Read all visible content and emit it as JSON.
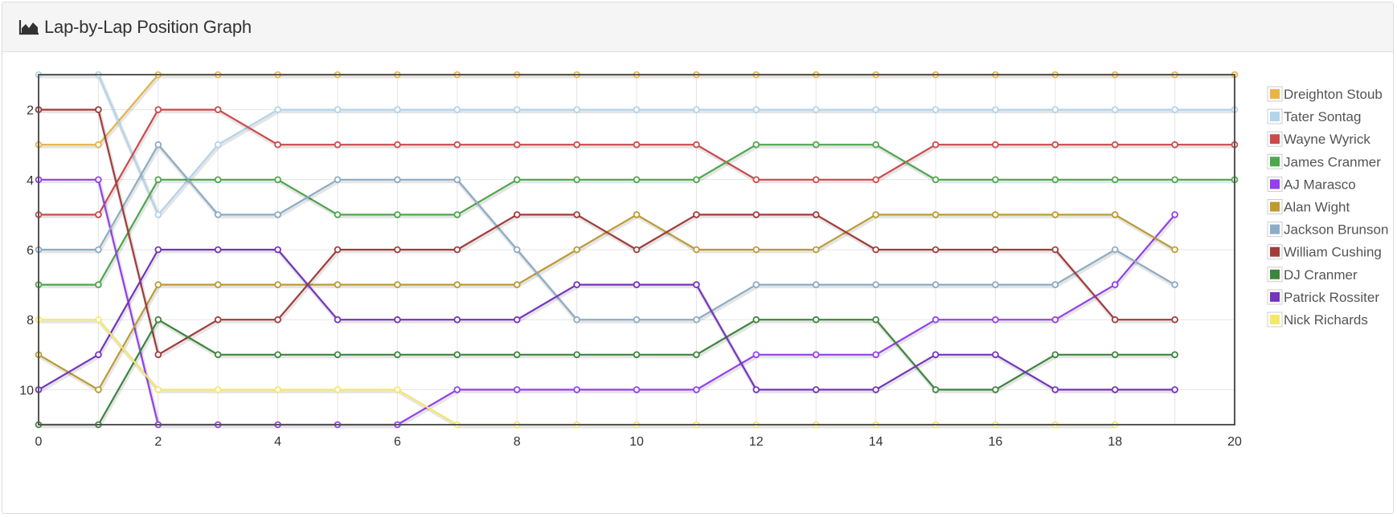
{
  "panel": {
    "title": "Lap-by-Lap Position Graph",
    "title_icon": "area-chart-icon"
  },
  "chart_data": {
    "type": "line",
    "title": "",
    "xlabel": "",
    "ylabel": "",
    "xlim": [
      0,
      20
    ],
    "ylim": [
      11,
      1
    ],
    "y_inverted": true,
    "x_ticks": [
      0,
      2,
      4,
      6,
      8,
      10,
      12,
      14,
      16,
      18,
      20
    ],
    "y_ticks": [
      2,
      4,
      6,
      8,
      10
    ],
    "grid": true,
    "legend_position": "top-right",
    "series": [
      {
        "name": "Dreighton Stoub",
        "color": "#e8b447",
        "x": [
          0,
          1,
          2,
          3,
          4,
          5,
          6,
          7,
          8,
          9,
          10,
          11,
          12,
          13,
          14,
          15,
          16,
          17,
          18,
          19,
          20
        ],
        "values": [
          3,
          3,
          1,
          1,
          1,
          1,
          1,
          1,
          1,
          1,
          1,
          1,
          1,
          1,
          1,
          1,
          1,
          1,
          1,
          1,
          1
        ]
      },
      {
        "name": "Tater Sontag",
        "color": "#b2d4ec",
        "x": [
          0,
          1,
          2,
          3,
          4,
          5,
          6,
          7,
          8,
          9,
          10,
          11,
          12,
          13,
          14,
          15,
          16,
          17,
          18,
          19,
          20
        ],
        "values": [
          1,
          1,
          5,
          3,
          2,
          2,
          2,
          2,
          2,
          2,
          2,
          2,
          2,
          2,
          2,
          2,
          2,
          2,
          2,
          2,
          2
        ]
      },
      {
        "name": "Wayne Wyrick",
        "color": "#cb4b4b",
        "x": [
          0,
          1,
          2,
          3,
          4,
          5,
          6,
          7,
          8,
          9,
          10,
          11,
          12,
          13,
          14,
          15,
          16,
          17,
          18,
          19,
          20
        ],
        "values": [
          5,
          5,
          2,
          2,
          3,
          3,
          3,
          3,
          3,
          3,
          3,
          3,
          4,
          4,
          4,
          3,
          3,
          3,
          3,
          3,
          3
        ]
      },
      {
        "name": "James Cranmer",
        "color": "#4da74d",
        "x": [
          0,
          1,
          2,
          3,
          4,
          5,
          6,
          7,
          8,
          9,
          10,
          11,
          12,
          13,
          14,
          15,
          16,
          17,
          18,
          19,
          20
        ],
        "values": [
          7,
          7,
          4,
          4,
          4,
          5,
          5,
          5,
          4,
          4,
          4,
          4,
          3,
          3,
          3,
          4,
          4,
          4,
          4,
          4,
          4
        ]
      },
      {
        "name": "AJ Marasco",
        "color": "#9440ed",
        "x": [
          0,
          1,
          2,
          3,
          4,
          5,
          6,
          7,
          8,
          9,
          10,
          11,
          12,
          13,
          14,
          15,
          16,
          17,
          18,
          19
        ],
        "values": [
          4,
          4,
          11,
          11,
          11,
          11,
          11,
          10,
          10,
          10,
          10,
          10,
          9,
          9,
          9,
          8,
          8,
          8,
          7,
          5
        ]
      },
      {
        "name": "Alan Wight",
        "color": "#bd9b33",
        "x": [
          0,
          1,
          2,
          3,
          4,
          5,
          6,
          7,
          8,
          9,
          10,
          11,
          12,
          13,
          14,
          15,
          16,
          17,
          18,
          19
        ],
        "values": [
          9,
          10,
          7,
          7,
          7,
          7,
          7,
          7,
          7,
          6,
          5,
          6,
          6,
          6,
          5,
          5,
          5,
          5,
          5,
          6
        ]
      },
      {
        "name": "Jackson Brunson",
        "color": "#8cacc6",
        "x": [
          0,
          1,
          2,
          3,
          4,
          5,
          6,
          7,
          8,
          9,
          10,
          11,
          12,
          13,
          14,
          15,
          16,
          17,
          18,
          19
        ],
        "values": [
          6,
          6,
          3,
          5,
          5,
          4,
          4,
          4,
          6,
          8,
          8,
          8,
          7,
          7,
          7,
          7,
          7,
          7,
          6,
          7
        ]
      },
      {
        "name": "William Cushing",
        "color": "#a23c3c",
        "x": [
          0,
          1,
          2,
          3,
          4,
          5,
          6,
          7,
          8,
          9,
          10,
          11,
          12,
          13,
          14,
          15,
          16,
          17,
          18,
          19
        ],
        "values": [
          2,
          2,
          9,
          8,
          8,
          6,
          6,
          6,
          5,
          5,
          6,
          5,
          5,
          5,
          6,
          6,
          6,
          6,
          8,
          8
        ]
      },
      {
        "name": "DJ Cranmer",
        "color": "#3d853d",
        "x": [
          0,
          1,
          2,
          3,
          4,
          5,
          6,
          7,
          8,
          9,
          10,
          11,
          12,
          13,
          14,
          15,
          16,
          17,
          18,
          19
        ],
        "values": [
          11,
          11,
          8,
          9,
          9,
          9,
          9,
          9,
          9,
          9,
          9,
          9,
          8,
          8,
          8,
          10,
          10,
          9,
          9,
          9
        ]
      },
      {
        "name": "Patrick Rossiter",
        "color": "#7633bd",
        "x": [
          0,
          1,
          2,
          3,
          4,
          5,
          6,
          7,
          8,
          9,
          10,
          11,
          12,
          13,
          14,
          15,
          16,
          17,
          18,
          19
        ],
        "values": [
          10,
          9,
          6,
          6,
          6,
          8,
          8,
          8,
          8,
          7,
          7,
          7,
          10,
          10,
          10,
          9,
          9,
          10,
          10,
          10
        ]
      },
      {
        "name": "Nick Richards",
        "color": "#f5e86b",
        "x": [
          0,
          1,
          2,
          3,
          4,
          5,
          6,
          7,
          8,
          9,
          10,
          11,
          12,
          13,
          14,
          15,
          16,
          17,
          18
        ],
        "values": [
          8,
          8,
          10,
          10,
          10,
          10,
          10,
          11,
          11,
          11,
          11,
          11,
          11,
          11,
          11,
          11,
          11,
          11,
          11
        ]
      }
    ]
  }
}
